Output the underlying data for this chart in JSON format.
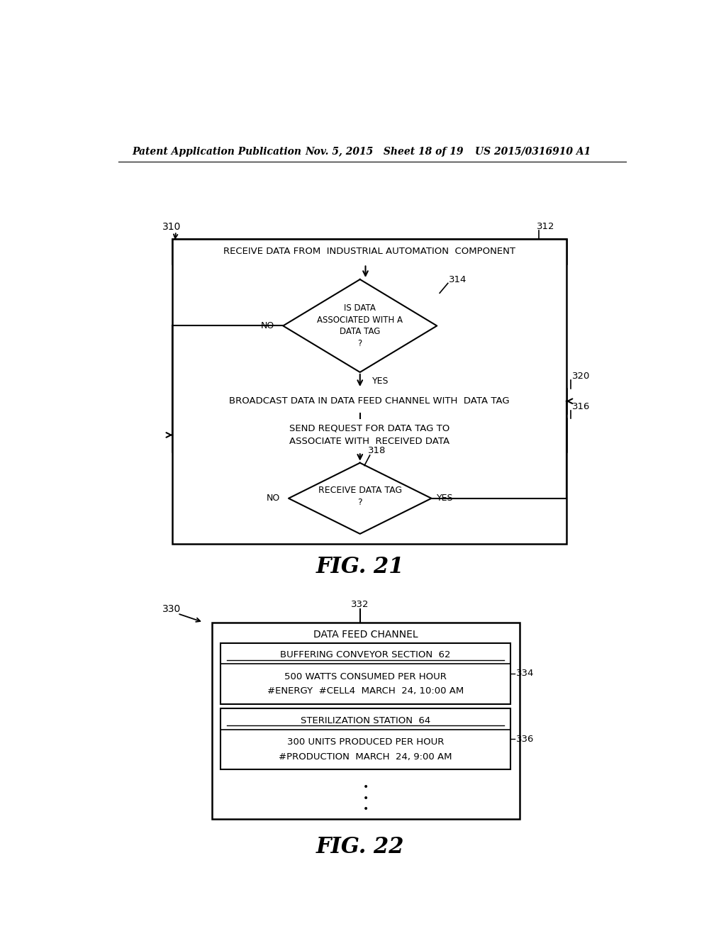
{
  "bg_color": "#ffffff",
  "header_left": "Patent Application Publication",
  "header_mid": "Nov. 5, 2015   Sheet 18 of 19",
  "header_right": "US 2015/0316910 A1",
  "fig21_label": "FIG. 21",
  "fig22_label": "FIG. 22",
  "fig21_ref": "310",
  "fig22_ref": "330",
  "box312_text": "RECEIVE DATA FROM  INDUSTRIAL AUTOMATION  COMPONENT",
  "box312_ref": "312",
  "diamond314_text": "IS DATA\nASSOCIATED WITH A\nDATA TAG\n?",
  "diamond314_ref": "314",
  "box320_text": "BROADCAST DATA IN DATA FEED CHANNEL WITH  DATA TAG",
  "box320_ref": "320",
  "box316_text": "SEND REQUEST FOR DATA TAG TO\nASSOCIATE WITH  RECEIVED DATA",
  "box316_ref": "316",
  "diamond318_text": "RECEIVE DATA TAG\n?",
  "diamond318_ref": "318",
  "box332_text": "DATA FEED CHANNEL",
  "box332_ref": "332",
  "box334_title": "BUFFERING CONVEYOR SECTION  62",
  "box334_line1": "500 WATTS CONSUMED PER HOUR",
  "box334_line2": "#ENERGY  #CELL4  MARCH  24, 10:00 AM",
  "box334_ref": "334",
  "box336_title": "STERILIZATION STATION  64",
  "box336_line1": "300 UNITS PRODUCED PER HOUR",
  "box336_line2": "#PRODUCTION  MARCH  24, 9:00 AM",
  "box336_ref": "336"
}
